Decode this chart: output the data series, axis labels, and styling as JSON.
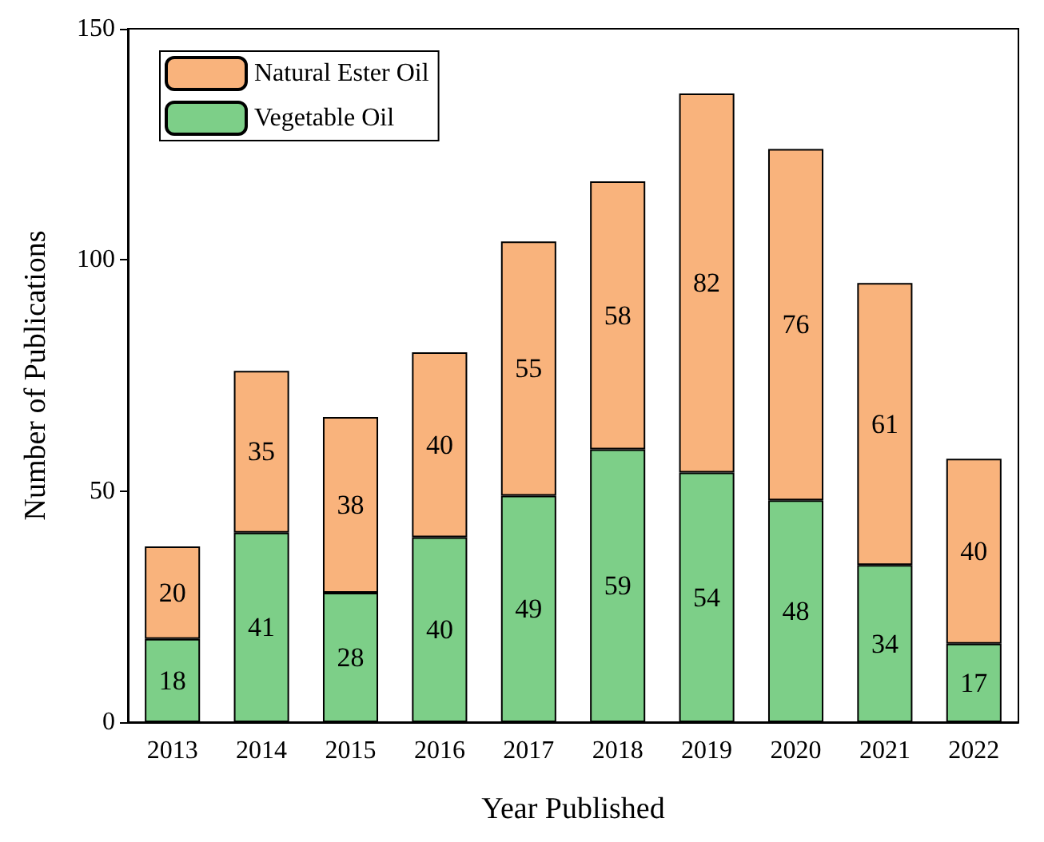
{
  "chart_data": {
    "type": "bar",
    "stacked": true,
    "xlabel": "Year Published",
    "ylabel": "Number of Publications",
    "categories": [
      "2013",
      "2014",
      "2015",
      "2016",
      "2017",
      "2018",
      "2019",
      "2020",
      "2021",
      "2022"
    ],
    "series": [
      {
        "name": "Vegetable Oil",
        "color": "#7dcf88",
        "values": [
          18,
          41,
          28,
          40,
          49,
          59,
          54,
          48,
          34,
          17
        ]
      },
      {
        "name": "Natural Ester Oil",
        "color": "#f9b37c",
        "values": [
          20,
          35,
          38,
          40,
          55,
          58,
          82,
          76,
          61,
          40
        ]
      }
    ],
    "ylim": [
      0,
      150
    ],
    "yticks": [
      0,
      50,
      100,
      150
    ],
    "grid": false,
    "legend": "top left",
    "data_labels": true
  }
}
